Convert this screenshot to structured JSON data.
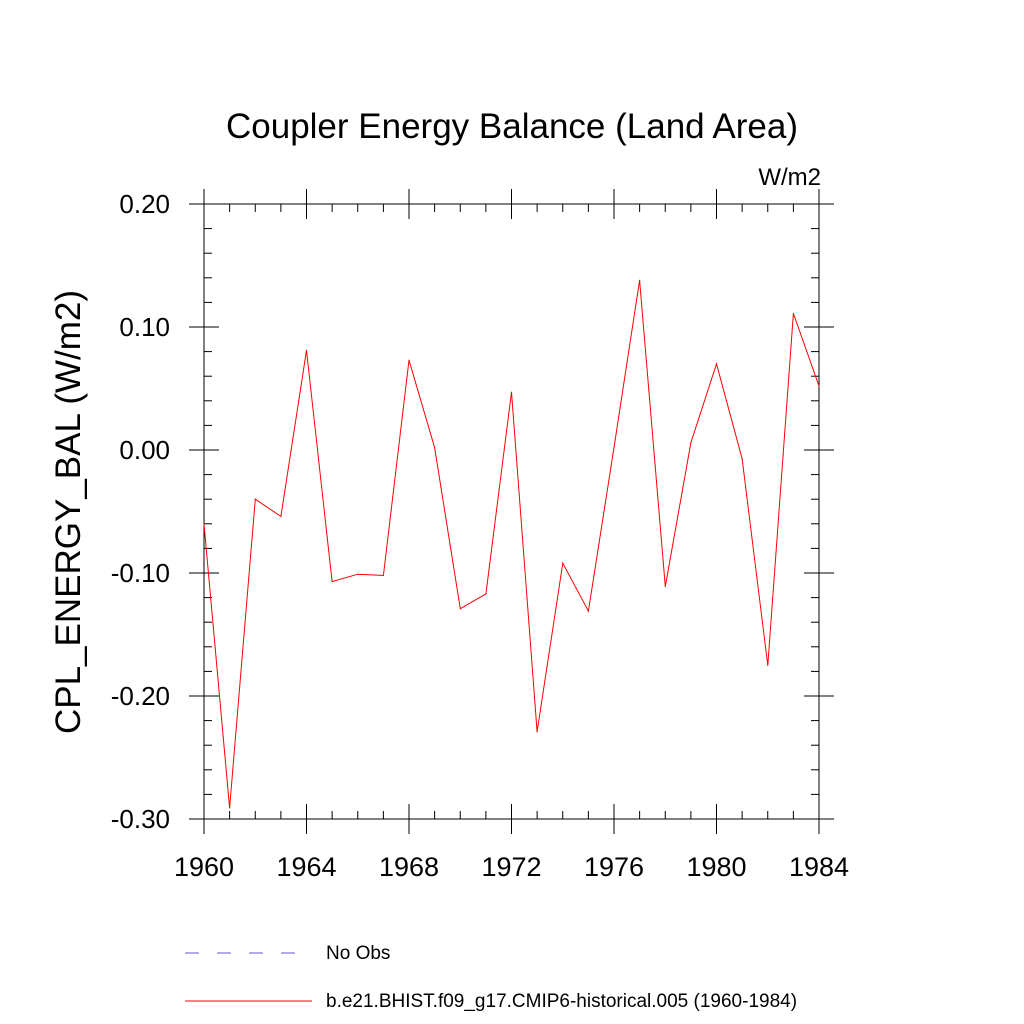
{
  "chart_data": {
    "type": "line",
    "title": "Coupler Energy Balance (Land Area)",
    "units_label": "W/m2",
    "ylabel": "CPL_ENERGY_BAL  (W/m2)",
    "xlabel": "",
    "xlim": [
      1960,
      1984
    ],
    "ylim": [
      -0.3,
      0.2
    ],
    "x_ticks": [
      1960,
      1964,
      1968,
      1972,
      1976,
      1980,
      1984
    ],
    "x_tick_labels": [
      "1960",
      "1964",
      "1968",
      "1972",
      "1976",
      "1980",
      "1984"
    ],
    "y_ticks": [
      -0.3,
      -0.2,
      -0.1,
      0.0,
      0.1,
      0.2
    ],
    "y_tick_labels": [
      "-0.30",
      "-0.20",
      "-0.10",
      "0.00",
      "0.10",
      "0.20"
    ],
    "x_minor_step": 1,
    "y_minor_step": 0.02,
    "grid": false,
    "legend_position": "bottom",
    "series": [
      {
        "name": "No Obs",
        "color": "#6a5acd",
        "style": "dashed",
        "x": [],
        "values": []
      },
      {
        "name": "b.e21.BHIST.f09_g17.CMIP6-historical.005 (1960-1984)",
        "color": "#ff0000",
        "style": "solid",
        "x": [
          1960,
          1961,
          1962,
          1963,
          1964,
          1965,
          1966,
          1967,
          1968,
          1969,
          1970,
          1971,
          1972,
          1973,
          1974,
          1975,
          1976,
          1977,
          1978,
          1979,
          1980,
          1981,
          1982,
          1983,
          1984
        ],
        "values": [
          -0.06,
          -0.291,
          -0.04,
          -0.054,
          0.081,
          -0.107,
          -0.101,
          -0.102,
          0.073,
          0.002,
          -0.129,
          -0.117,
          0.047,
          -0.229,
          -0.092,
          -0.131,
          0.002,
          0.138,
          -0.111,
          0.006,
          0.07,
          -0.007,
          -0.175,
          0.111,
          0.052
        ]
      }
    ]
  }
}
